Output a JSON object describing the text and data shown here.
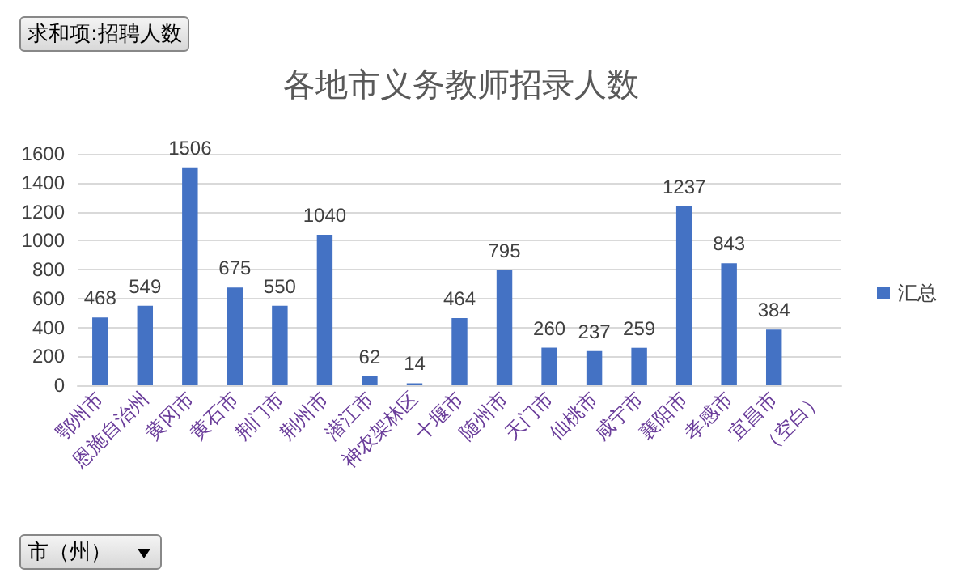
{
  "chart_data": {
    "type": "bar",
    "title": "各地市义务教师招录人数",
    "categories": [
      "鄂州市",
      "恩施自治州",
      "黄冈市",
      "黄石市",
      "荆门市",
      "荆州市",
      "潜江市",
      "神农架林区",
      "十堰市",
      "随州市",
      "天门市",
      "仙桃市",
      "咸宁市",
      "襄阳市",
      "孝感市",
      "宜昌市",
      "（空白）"
    ],
    "series": [
      {
        "name": "汇总",
        "color": "#4472c4",
        "values": [
          468,
          549,
          1506,
          675,
          550,
          1040,
          62,
          14,
          464,
          795,
          260,
          237,
          259,
          1237,
          843,
          384,
          null
        ]
      }
    ],
    "ylim": [
      0,
      1600
    ],
    "yticks": [
      0,
      200,
      400,
      600,
      800,
      1000,
      1200,
      1400,
      1600
    ],
    "grid": "y",
    "legend": "right",
    "data_labels": true,
    "annotations": [
      "求和项:招聘人数",
      "市（州）"
    ]
  }
}
